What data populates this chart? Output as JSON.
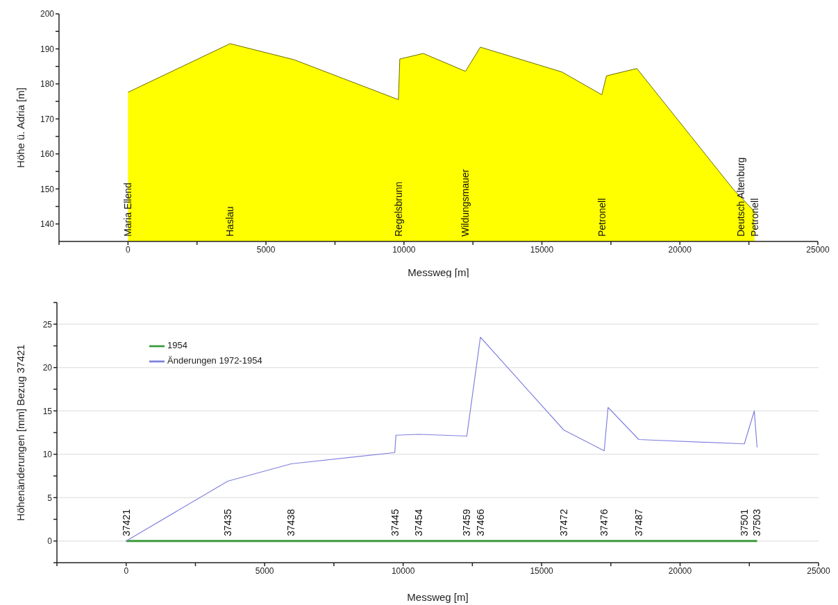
{
  "chart_data": [
    {
      "type": "area",
      "xlabel": "Messweg [m]",
      "ylabel": "Höhe ü. Adria [m]",
      "legend": false,
      "x": [
        0,
        3700,
        6020,
        9800,
        9850,
        10700,
        12230,
        12770,
        15725,
        17170,
        17340,
        18440,
        21925,
        22705
      ],
      "series": [
        {
          "color": "#ffff00",
          "values": [
            177.6,
            191.5,
            186.9,
            175.5,
            187.1,
            188.7,
            183.6,
            190.5,
            183.4,
            176.9,
            182.3,
            184.4,
            150.0,
            143.5
          ]
        }
      ],
      "xlim": [
        -2500,
        25000
      ],
      "xticks": [
        {
          "value": -2500,
          "label": null
        },
        0,
        {
          "value": 2500,
          "label": null
        },
        5000,
        {
          "value": 7500,
          "label": null
        },
        10000,
        {
          "value": 12500,
          "label": null
        },
        15000,
        {
          "value": 17500,
          "label": null
        },
        20000,
        {
          "value": 22500,
          "label": null
        },
        25000
      ],
      "ylim": [
        135,
        200
      ],
      "yticks": [
        140,
        {
          "value": 145,
          "label": null
        },
        150,
        {
          "value": 155,
          "label": null
        },
        160,
        {
          "value": 165,
          "label": null
        },
        170,
        {
          "value": 175,
          "label": null
        },
        180,
        {
          "value": 185,
          "label": null
        },
        190,
        {
          "value": 195,
          "label": null
        },
        200
      ],
      "annotations": [
        {
          "text": "Maria Ellend",
          "x": 0,
          "y": 135
        },
        {
          "text": "Haslau",
          "x": 3700,
          "y": 135
        },
        {
          "text": "Regelsbrunn",
          "x": 9800,
          "y": 135
        },
        {
          "text": "Wildungsmauer",
          "x": 12230,
          "y": 135
        },
        {
          "text": "Petronell",
          "x": 17170,
          "y": 135
        },
        {
          "text": "Deutsch Altenburg",
          "x": 22200,
          "y": 135
        },
        {
          "text": "Petronell",
          "x": 22705,
          "y": 135
        }
      ]
    },
    {
      "type": "line",
      "xlabel": "Messweg [m]",
      "ylabel": "Höhenänderungen [mm] Bezug 37421",
      "legend": "top left",
      "grid": "y",
      "marker": "none",
      "x": [
        0,
        3670,
        5960,
        9700,
        9740,
        10570,
        12300,
        12790,
        15800,
        17260,
        17400,
        18510,
        22320,
        22680,
        22780
      ],
      "series": [
        {
          "name": "1954",
          "color": "#3a9a3a",
          "values": [
            0,
            0,
            0,
            0,
            0,
            0,
            0,
            0,
            0,
            0,
            0,
            0,
            0,
            0,
            0
          ]
        },
        {
          "name": "Änderungen 1972-1954",
          "color": "#8080e0",
          "values": [
            0,
            6.9,
            8.9,
            10.2,
            12.2,
            12.3,
            12.1,
            23.5,
            12.8,
            10.4,
            15.4,
            11.7,
            11.2,
            15.0,
            10.8
          ]
        }
      ],
      "xlim": [
        -2500,
        25000
      ],
      "xticks": [
        {
          "value": -2500,
          "label": null
        },
        0,
        {
          "value": 2500,
          "label": null
        },
        5000,
        {
          "value": 7500,
          "label": null
        },
        10000,
        {
          "value": 12500,
          "label": null
        },
        15000,
        {
          "value": 17500,
          "label": null
        },
        20000,
        {
          "value": 22500,
          "label": null
        },
        25000
      ],
      "ylim": [
        -2.5,
        27.5
      ],
      "yticks": [
        {
          "value": -2.5,
          "label": null
        },
        0,
        {
          "value": 2.5,
          "label": null
        },
        5,
        {
          "value": 7.5,
          "label": null
        },
        10,
        {
          "value": 12.5,
          "label": null
        },
        15,
        {
          "value": 17.5,
          "label": null
        },
        20,
        {
          "value": 22.5,
          "label": null
        },
        25,
        {
          "value": 27.5,
          "label": null
        }
      ],
      "annotations": [
        {
          "text": "37421",
          "x": 0,
          "y": 0
        },
        {
          "text": "37435",
          "x": 3670,
          "y": 0
        },
        {
          "text": "37438",
          "x": 5960,
          "y": 0
        },
        {
          "text": "37445",
          "x": 9700,
          "y": 0
        },
        {
          "text": "37454",
          "x": 10570,
          "y": 0
        },
        {
          "text": "37459",
          "x": 12300,
          "y": 0
        },
        {
          "text": "37466",
          "x": 12790,
          "y": 0
        },
        {
          "text": "37472",
          "x": 15800,
          "y": 0
        },
        {
          "text": "37476",
          "x": 17260,
          "y": 0
        },
        {
          "text": "37487",
          "x": 18510,
          "y": 0
        },
        {
          "text": "37501",
          "x": 22320,
          "y": 0
        },
        {
          "text": "37503",
          "x": 22780,
          "y": 0
        }
      ]
    }
  ]
}
